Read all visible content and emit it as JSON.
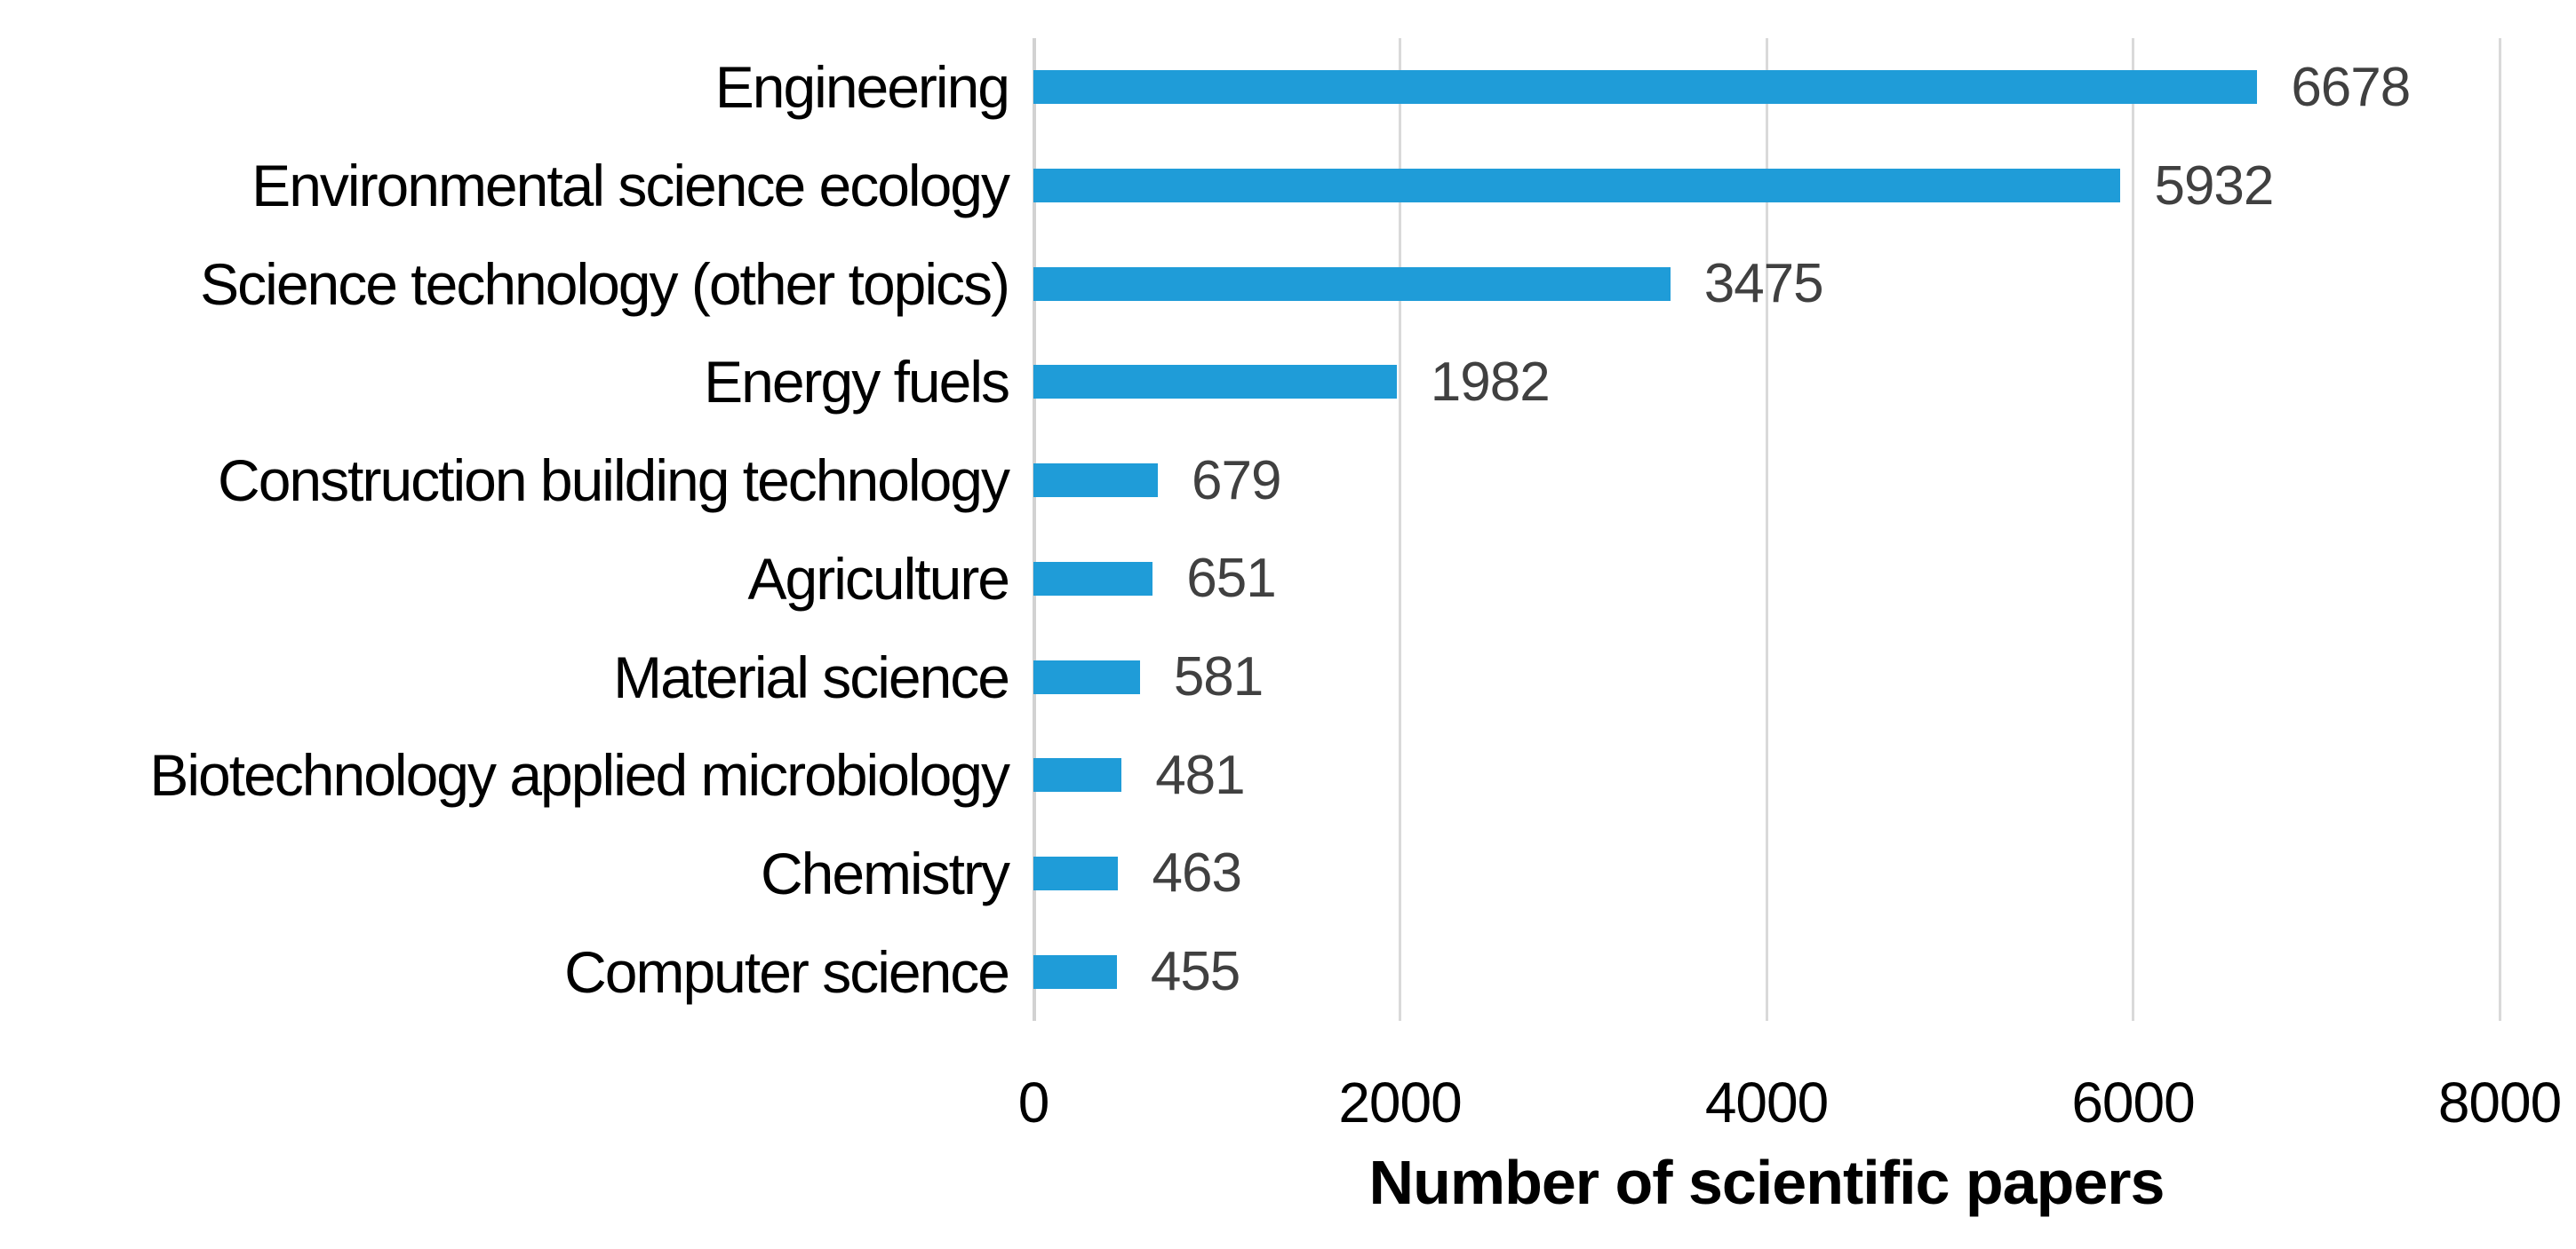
{
  "chart_data": {
    "type": "bar",
    "orientation": "horizontal",
    "title": "",
    "xlabel": "Number of scientific papers",
    "ylabel": "",
    "categories": [
      "Engineering",
      "Environmental science ecology",
      "Science technology (other topics)",
      "Energy fuels",
      "Construction building technology",
      "Agriculture",
      "Material science",
      "Biotechnology applied microbiology",
      "Chemistry",
      "Computer science"
    ],
    "values": [
      6678,
      5932,
      3475,
      1982,
      679,
      651,
      581,
      481,
      463,
      455
    ],
    "data_labels": [
      "6678",
      "5932",
      "3475",
      "1982",
      "679",
      "651",
      "581",
      "481",
      "463",
      "455"
    ],
    "xlim": [
      0,
      8000
    ],
    "x_ticks": [
      0,
      2000,
      4000,
      6000,
      8000
    ],
    "x_tick_labels": [
      "0",
      "2000",
      "4000",
      "6000",
      "8000"
    ],
    "grid": "vertical-gridlines-on",
    "legend": "none",
    "bar_color": "#1f9cd8",
    "value_label_color": "#404040",
    "gridline_color": "#d9d9d9"
  }
}
